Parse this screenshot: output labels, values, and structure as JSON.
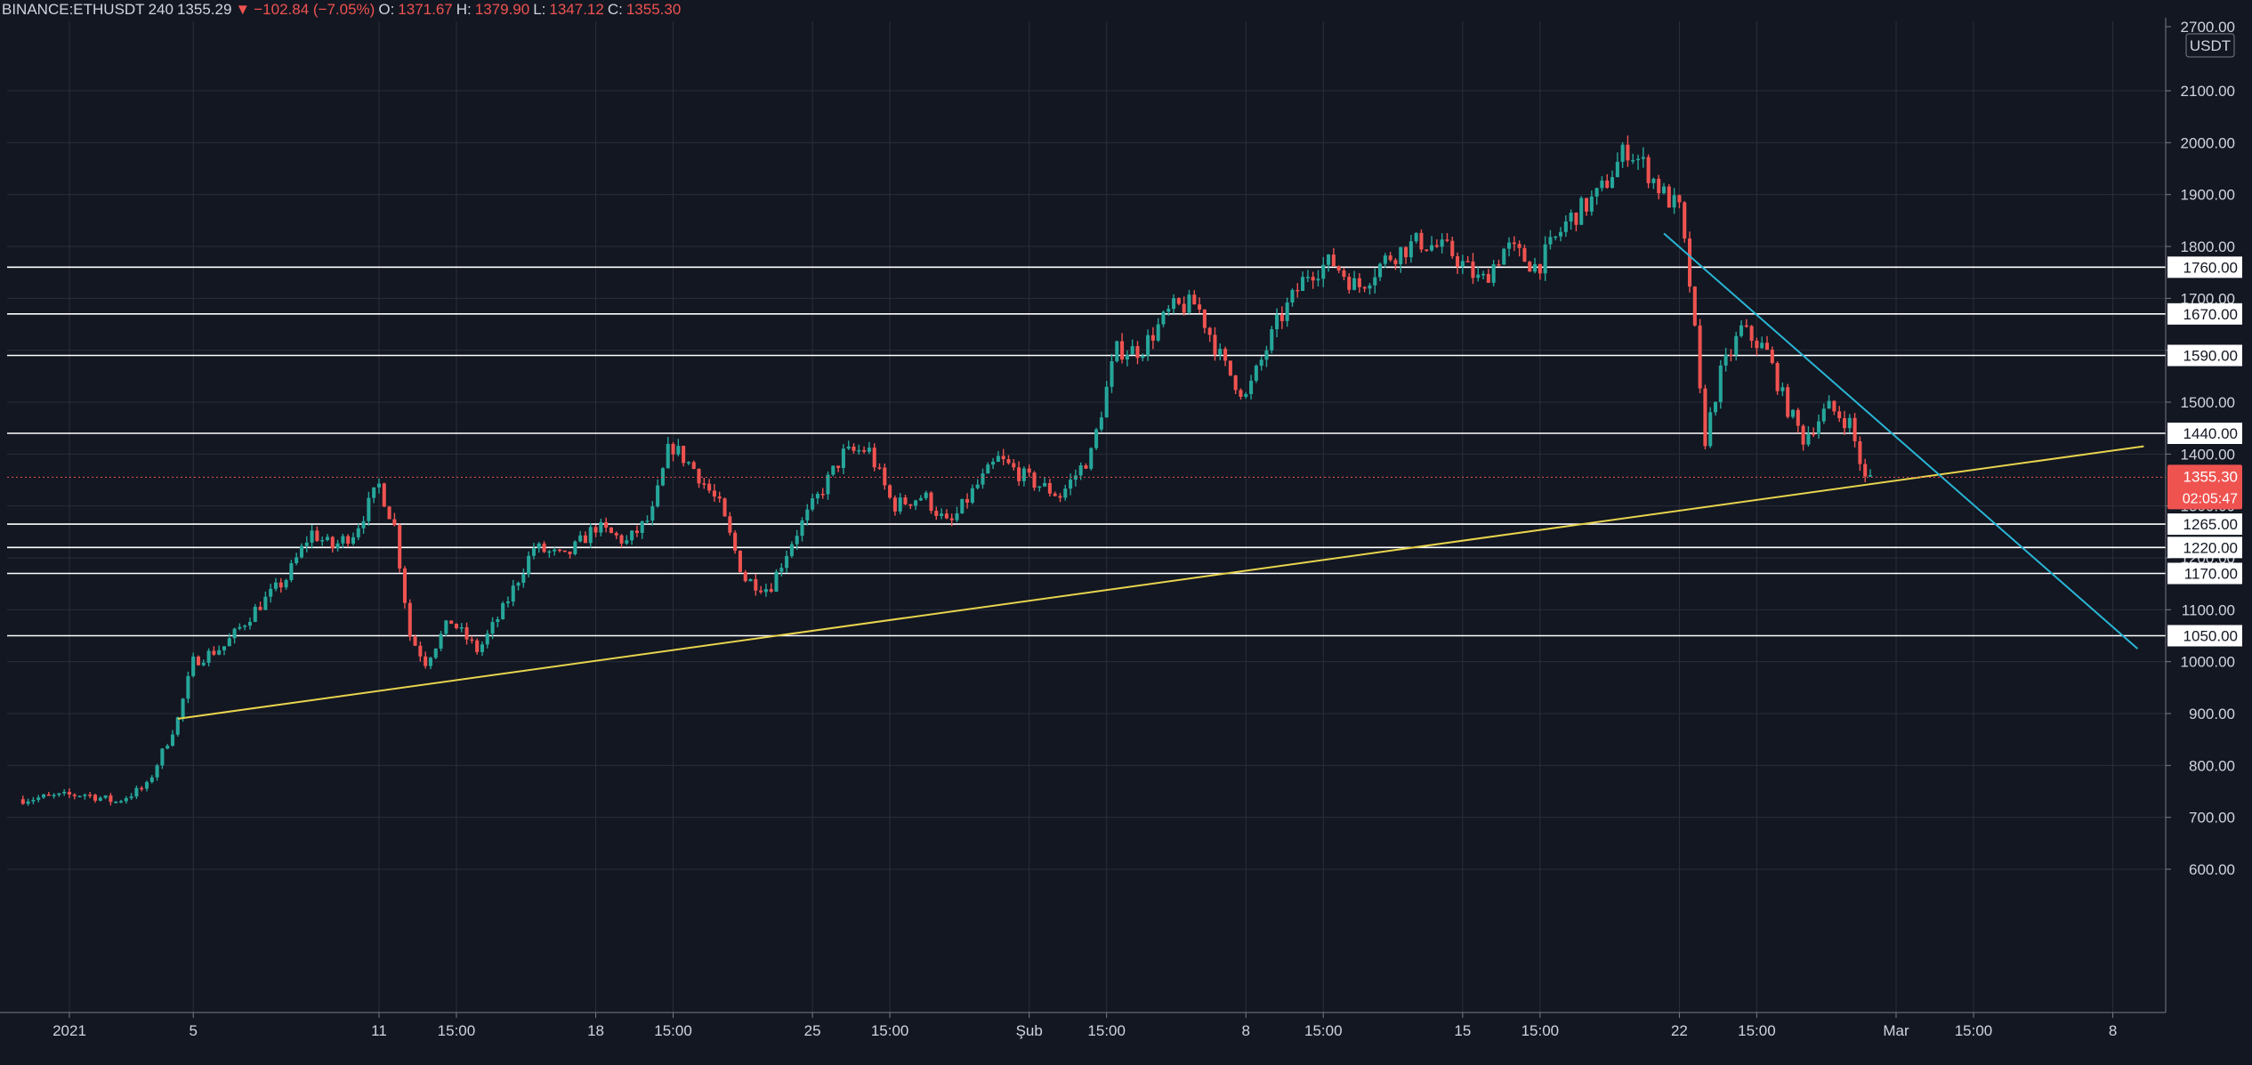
{
  "header": {
    "symbol": "BINANCE:ETHUSDT",
    "interval": "240",
    "last": "1355.29",
    "change_icon": "down-triangle-icon",
    "change": "−102.84 (−7.05%)",
    "open_label": "O:",
    "open": "1371.67",
    "high_label": "H:",
    "high": "1379.90",
    "low_label": "L:",
    "low": "1347.12",
    "close_label": "C:",
    "close": "1355.30"
  },
  "colors": {
    "background": "#131722",
    "grid": "#2a2e39",
    "up": "#26a69a",
    "down": "#ef5350",
    "support_line": "#e8d44d",
    "resistance_line": "#29b6d6",
    "level_line": "#ffffff",
    "text": "#d1d4dc"
  },
  "chart_data": {
    "type": "candlestick",
    "currency_label": "USDT",
    "ylim": [
      600,
      2700
    ],
    "y_ticks": [
      "600.00",
      "700.00",
      "800.00",
      "900.00",
      "1000.00",
      "1100.00",
      "1200.00",
      "1300.00",
      "1400.00",
      "1500.00",
      "1600.00",
      "1700.00",
      "1800.00",
      "1900.00",
      "2000.00",
      "2100.00",
      "2700.00"
    ],
    "x_ticks": [
      "2021",
      "5",
      "11",
      "15:00",
      "18",
      "15:00",
      "25",
      "15:00",
      "Şub",
      "15:00",
      "8",
      "15:00",
      "15",
      "15:00",
      "22",
      "15:00",
      "Mar",
      "15:00",
      "8"
    ],
    "x_tick_days": [
      0,
      4,
      10,
      12.5,
      17,
      19.5,
      24,
      26.5,
      31,
      33.5,
      38,
      40.5,
      45,
      47.5,
      52,
      54.5,
      59,
      61.5,
      66
    ],
    "xlim": [
      -1.5,
      67
    ],
    "horizontal_levels": [
      1760,
      1670,
      1590,
      1440,
      1265,
      1220,
      1170,
      1050
    ],
    "current_price": {
      "value": 1355.3,
      "label": "1355.30",
      "countdown": "02:05:47"
    },
    "trendlines": [
      {
        "name": "support",
        "from": [
          3.5,
          890
        ],
        "to": [
          67,
          1415
        ]
      },
      {
        "name": "resistance",
        "from": [
          51.5,
          1825
        ],
        "to": [
          66.8,
          1025
        ]
      }
    ],
    "price_path": [
      [
        -1.5,
        735
      ],
      [
        0.5,
        745
      ],
      [
        1.5,
        730
      ],
      [
        2.5,
        760
      ],
      [
        3.5,
        890
      ],
      [
        4,
        1000
      ],
      [
        5,
        1030
      ],
      [
        6,
        1100
      ],
      [
        7,
        1160
      ],
      [
        7.8,
        1250
      ],
      [
        8.5,
        1220
      ],
      [
        9.2,
        1250
      ],
      [
        10,
        1340
      ],
      [
        10.5,
        1260
      ],
      [
        11,
        1050
      ],
      [
        11.5,
        1000
      ],
      [
        12.3,
        1080
      ],
      [
        13.2,
        1020
      ],
      [
        14,
        1100
      ],
      [
        15,
        1220
      ],
      [
        16,
        1200
      ],
      [
        17,
        1260
      ],
      [
        18,
        1230
      ],
      [
        18.8,
        1280
      ],
      [
        19.4,
        1420
      ],
      [
        20.2,
        1370
      ],
      [
        21,
        1300
      ],
      [
        21.8,
        1160
      ],
      [
        22.6,
        1140
      ],
      [
        23.4,
        1240
      ],
      [
        24.2,
        1320
      ],
      [
        25,
        1400
      ],
      [
        25.8,
        1410
      ],
      [
        26.6,
        1300
      ],
      [
        27.6,
        1320
      ],
      [
        28.4,
        1260
      ],
      [
        29.2,
        1330
      ],
      [
        30,
        1390
      ],
      [
        31,
        1350
      ],
      [
        32,
        1320
      ],
      [
        33,
        1400
      ],
      [
        33.8,
        1600
      ],
      [
        34.6,
        1600
      ],
      [
        35.6,
        1680
      ],
      [
        36.4,
        1690
      ],
      [
        37.3,
        1570
      ],
      [
        38,
        1510
      ],
      [
        39,
        1650
      ],
      [
        40,
        1750
      ],
      [
        40.8,
        1770
      ],
      [
        41.6,
        1720
      ],
      [
        42.6,
        1780
      ],
      [
        43.6,
        1810
      ],
      [
        44.6,
        1790
      ],
      [
        45.6,
        1730
      ],
      [
        46.4,
        1800
      ],
      [
        47.4,
        1760
      ],
      [
        48.4,
        1850
      ],
      [
        49.4,
        1900
      ],
      [
        50.3,
        1990
      ],
      [
        50.8,
        1960
      ],
      [
        51.5,
        1900
      ],
      [
        52,
        1870
      ],
      [
        52.4,
        1700
      ],
      [
        52.8,
        1420
      ],
      [
        53.3,
        1550
      ],
      [
        54,
        1640
      ],
      [
        54.8,
        1600
      ],
      [
        55.4,
        1500
      ],
      [
        56,
        1430
      ],
      [
        56.8,
        1490
      ],
      [
        57.5,
        1460
      ],
      [
        58,
        1350
      ],
      [
        58.3,
        1355
      ]
    ]
  }
}
